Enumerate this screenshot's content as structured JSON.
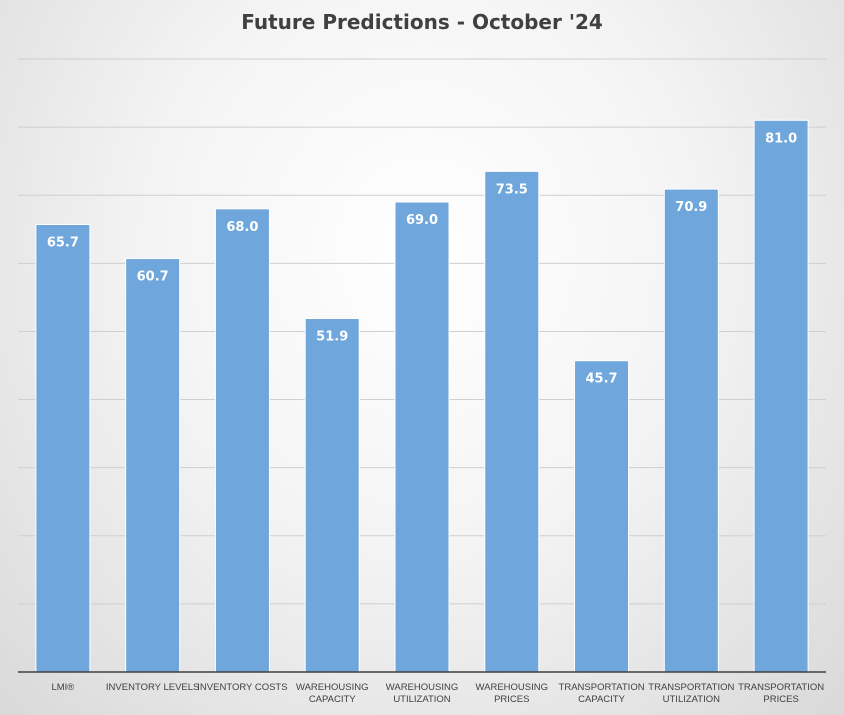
{
  "chart_data": {
    "type": "bar",
    "title": "Future Predictions - October '24",
    "categories": [
      "LMI®",
      "INVENTORY LEVELS",
      "INVENTORY COSTS",
      "WAREHOUSING CAPACITY",
      "WAREHOUSING UTILIZATION",
      "WAREHOUSING PRICES",
      "TRANSPORTATION CAPACITY",
      "TRANSPORTATION UTILIZATION",
      "TRANSPORTATION PRICES"
    ],
    "values": [
      65.7,
      60.7,
      68.0,
      51.9,
      69.0,
      73.5,
      45.7,
      70.9,
      81.0
    ],
    "data_labels": [
      "65.7",
      "60.7",
      "68.0",
      "51.9",
      "69.0",
      "73.5",
      "45.7",
      "70.9",
      "81.0"
    ],
    "xlabel": "",
    "ylabel": "",
    "ylim": [
      0,
      90
    ],
    "y_tick_step": 10,
    "y_tick_labels_visible": false,
    "grid": true,
    "legend": "none",
    "colors": {
      "bar_fill": "#6fa6db",
      "bar_stroke": "#ffffff",
      "gridline": "#cfcfcf",
      "axis_line": "#404040",
      "data_label": "#ffffff",
      "title": "#404040",
      "category_label": "#404040"
    }
  }
}
